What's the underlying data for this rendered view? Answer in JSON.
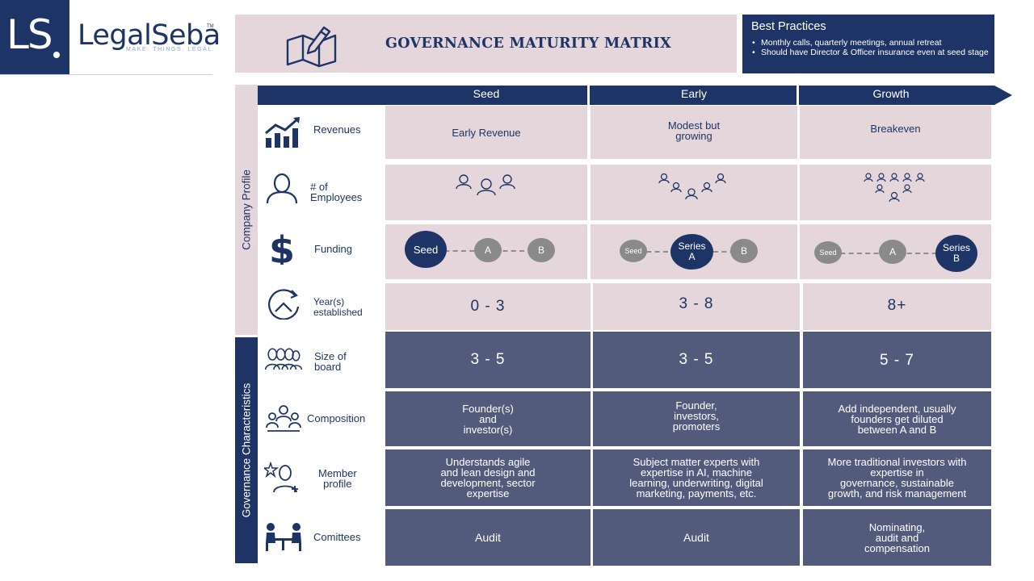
{
  "logo": {
    "mark": "LS",
    "name": "LegalSeba",
    "tm": "TM",
    "tagline": "MAKE. THINGS. LEGAL."
  },
  "title": {
    "text": "GOVERNANCE MATURITY MATRIX",
    "icon": "map-pencil-icon"
  },
  "best_practices": {
    "title": "Best Practices",
    "items": [
      "Monthly calls, quarterly meetings, annual retreat",
      "Should have Director & Officer insurance even at seed stage"
    ]
  },
  "sections": {
    "profile": "Company Profile",
    "governance": "Governance Characteristics"
  },
  "stages": [
    "Seed",
    "Early",
    "Growth"
  ],
  "rows": {
    "revenues": {
      "label": "Revenues",
      "icon": "chart-up-icon",
      "values": [
        "Early Revenue",
        "Modest but\ngrowing",
        "Breakeven"
      ]
    },
    "employees": {
      "label": "# of\nEmployees",
      "icon": "person-icon"
    },
    "funding": {
      "label": "Funding",
      "icon": "dollar-icon",
      "seed": [
        "Seed",
        "A",
        "B"
      ],
      "early": [
        "Seed",
        "Series\nA",
        "B"
      ],
      "growth": [
        "Seed",
        "A",
        "Series\nB"
      ]
    },
    "years": {
      "label": "Year(s)\nestablished",
      "icon": "clock-icon",
      "values": [
        "0 - 3",
        "3 - 8",
        "8+"
      ]
    },
    "board": {
      "label": "Size of\nboard",
      "icon": "board-group-icon",
      "values": [
        "3 - 5",
        "3 - 5",
        "5 - 7"
      ]
    },
    "composition": {
      "label": "Composition",
      "icon": "meeting-icon",
      "values": [
        "Founder(s)\nand\ninvestor(s)",
        "Founder,\ninvestors,\npromoters",
        "Add independent, usually\nfounders get diluted\nbetween A and B"
      ]
    },
    "member": {
      "label": "Member\nprofile",
      "icon": "star-person-icon",
      "values": [
        "Understands agile\nand lean design and\ndevelopment, sector\nexpertise",
        "Subject matter experts with\nexpertise in AI, machine\nlearning, underwriting, digital\nmarketing, payments, etc.",
        "More traditional investors with\nexpertise in\ngovernance, sustainable\ngrowth, and risk management"
      ]
    },
    "committees": {
      "label": "Comittees",
      "icon": "committee-icon",
      "values": [
        "Audit",
        "Audit",
        "Nominating,\naudit and\ncompensation"
      ]
    }
  },
  "colors": {
    "navy": "#1f3466",
    "pink": "#e4d6da",
    "slate": "#535b7d",
    "gray": "#8a8a8a"
  }
}
